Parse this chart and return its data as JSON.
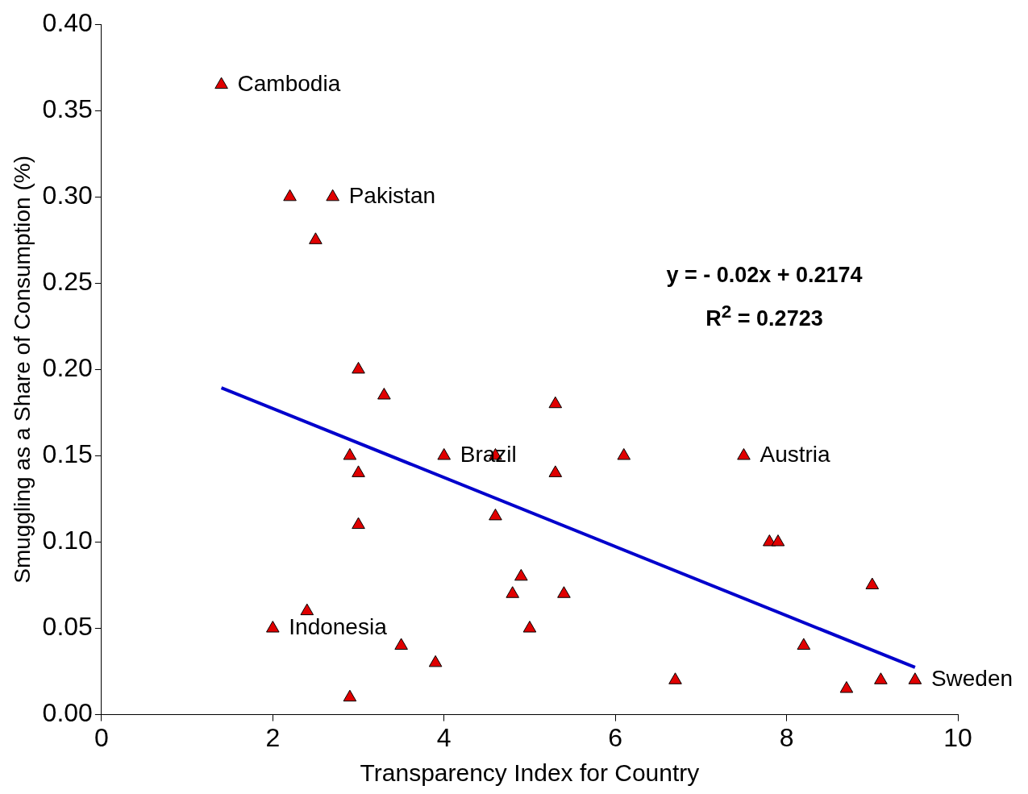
{
  "chart_data": {
    "type": "scatter",
    "xlabel": "Transparency Index for Country",
    "ylabel": "Smuggling as a Share of Consumption (%)",
    "xlim": [
      0,
      10
    ],
    "xticks": [
      0,
      2,
      4,
      6,
      8,
      10
    ],
    "ylim": [
      0,
      0.4
    ],
    "yticks": [
      {
        "value": 0,
        "label": "0.00"
      },
      {
        "value": 0.05,
        "label": "0.05"
      },
      {
        "value": 0.1,
        "label": "0.10"
      },
      {
        "value": 0.15,
        "label": "0.15"
      },
      {
        "value": 0.2,
        "label": "0.20"
      },
      {
        "value": 0.25,
        "label": "0.25"
      },
      {
        "value": 0.3,
        "label": "0.30"
      },
      {
        "value": 0.35,
        "label": "0.35"
      },
      {
        "value": 0.4,
        "label": "0.40"
      }
    ],
    "grid": false,
    "legend": false,
    "series": [
      {
        "marker": "triangle",
        "color": "#e00000",
        "x": [
          1.4,
          2.2,
          2.7,
          2.5,
          3.0,
          3.3,
          2.9,
          3.0,
          3.0,
          2.4,
          2.0,
          3.5,
          3.9,
          2.9,
          4.0,
          4.6,
          4.6,
          4.9,
          4.8,
          5.0,
          5.4,
          5.3,
          5.3,
          6.1,
          6.7,
          7.5,
          7.8,
          7.9,
          9.0,
          8.2,
          8.7,
          9.1,
          9.5
        ],
        "values": [
          0.365,
          0.3,
          0.3,
          0.275,
          0.2,
          0.185,
          0.15,
          0.14,
          0.11,
          0.06,
          0.05,
          0.04,
          0.03,
          0.01,
          0.15,
          0.15,
          0.115,
          0.08,
          0.07,
          0.05,
          0.07,
          0.18,
          0.14,
          0.15,
          0.02,
          0.15,
          0.1,
          0.1,
          0.075,
          0.04,
          0.015,
          0.02,
          0.02
        ]
      },
      {
        "type": "line",
        "marker": "none",
        "color": "#0000cc",
        "x": [
          1.4,
          9.5
        ],
        "values": [
          0.1894,
          0.0274
        ]
      }
    ],
    "annotations": [
      "y = - 0.02x + 0.2174",
      "R$^{2}$ = 0.2723",
      {
        "text": "Cambodia",
        "x": 1.4,
        "y": 0.365
      },
      {
        "text": "Pakistan",
        "x": 2.7,
        "y": 0.3
      },
      {
        "text": "Brazil",
        "x": 4.0,
        "y": 0.15
      },
      {
        "text": "Austria",
        "x": 7.5,
        "y": 0.15
      },
      {
        "text": "Indonesia",
        "x": 2.0,
        "y": 0.05
      },
      {
        "text": "Sweden",
        "x": 9.5,
        "y": 0.02
      }
    ]
  }
}
